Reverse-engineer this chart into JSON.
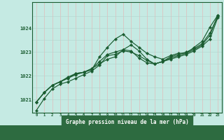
{
  "title": "Graphe pression niveau de la mer (hPa)",
  "bg_color": "#c5eae3",
  "plot_bg_color": "#c5eae3",
  "grid_color_major": "#b0d8d0",
  "grid_color_minor": "#f0c0c0",
  "line_color": "#1a5c30",
  "marker_color": "#1a5c30",
  "label_bg_color": "#2d6b40",
  "label_text_color": "#ffffff",
  "tick_color": "#1a5c30",
  "xlim": [
    -0.5,
    23.5
  ],
  "ylim": [
    1020.45,
    1025.1
  ],
  "yticks": [
    1021,
    1022,
    1023,
    1024
  ],
  "xticks": [
    0,
    1,
    2,
    3,
    4,
    5,
    6,
    7,
    8,
    9,
    10,
    11,
    12,
    13,
    14,
    15,
    16,
    17,
    18,
    19,
    20,
    21,
    22,
    23
  ],
  "series": [
    [
      1020.55,
      1021.05,
      1021.45,
      1021.65,
      1021.75,
      1021.9,
      1022.05,
      1022.2,
      1022.45,
      1022.85,
      1022.9,
      1023.05,
      1023.0,
      1022.85,
      1022.65,
      1022.5,
      1022.6,
      1022.75,
      1022.85,
      1022.95,
      1023.2,
      1023.45,
      1024.05,
      1024.55
    ],
    [
      1020.9,
      1021.3,
      1021.6,
      1021.75,
      1021.9,
      1022.1,
      1022.15,
      1022.25,
      1022.8,
      1023.2,
      1023.55,
      1023.75,
      1023.45,
      1023.2,
      1022.95,
      1022.8,
      1022.7,
      1022.85,
      1022.95,
      1022.95,
      1023.1,
      1023.3,
      1023.7,
      1024.55
    ],
    [
      1020.9,
      1021.3,
      1021.6,
      1021.75,
      1021.9,
      1022.05,
      1022.15,
      1022.3,
      1022.5,
      1022.7,
      1022.8,
      1023.1,
      1023.3,
      1023.05,
      1022.7,
      1022.5,
      1022.6,
      1022.8,
      1022.9,
      1023.0,
      1023.15,
      1023.35,
      1023.8,
      1024.5
    ],
    [
      1020.9,
      1021.3,
      1021.6,
      1021.75,
      1021.95,
      1022.1,
      1022.15,
      1022.3,
      1022.6,
      1022.9,
      1023.0,
      1023.1,
      1023.05,
      1022.75,
      1022.55,
      1022.5,
      1022.6,
      1022.7,
      1022.8,
      1022.9,
      1023.05,
      1023.25,
      1023.55,
      1024.45
    ]
  ]
}
